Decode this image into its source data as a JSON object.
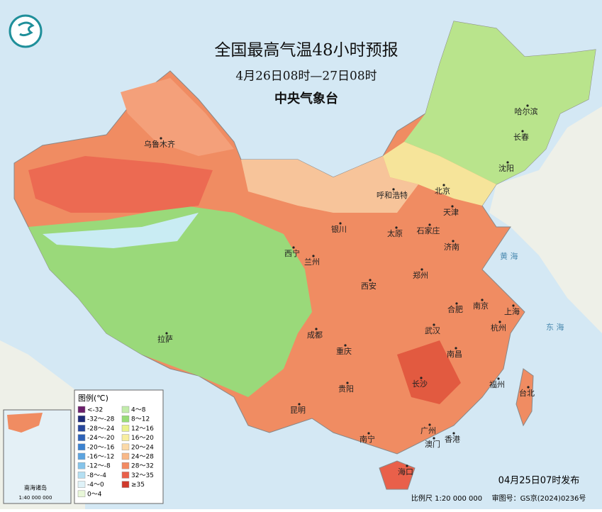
{
  "header": {
    "title": "全国最高气温48小时预报",
    "subtitle": "4月26日08时—27日08时",
    "issuer": "中央气象台"
  },
  "cities": [
    "乌鲁木齐",
    "哈尔滨",
    "长春",
    "沈阳",
    "呼和浩特",
    "北京",
    "天津",
    "银川",
    "太原",
    "石家庄",
    "济南",
    "西宁",
    "兰州",
    "西安",
    "郑州",
    "合肥",
    "南京",
    "上海",
    "杭州",
    "武汉",
    "成都",
    "重庆",
    "拉萨",
    "长沙",
    "南昌",
    "福州",
    "台北",
    "贵阳",
    "昆明",
    "南宁",
    "广州",
    "香港",
    "澳门",
    "海口"
  ],
  "seas": [
    "黄 海",
    "东 海"
  ],
  "legend": {
    "title": "图例(℃)",
    "entries": [
      {
        "label": "<-32",
        "color": "#6b1f6b"
      },
      {
        "label": "-32～-28",
        "color": "#1c2a78"
      },
      {
        "label": "-28～-24",
        "color": "#27479c"
      },
      {
        "label": "-24～-20",
        "color": "#2e62b8"
      },
      {
        "label": "-20～-16",
        "color": "#3b82d0"
      },
      {
        "label": "-16～-12",
        "color": "#5ba3df"
      },
      {
        "label": "-12～-8",
        "color": "#85c4ea"
      },
      {
        "label": "-8～-4",
        "color": "#b4dff2"
      },
      {
        "label": "-4～0",
        "color": "#dff2f8"
      },
      {
        "label": "0～4",
        "color": "#e8f7d8"
      },
      {
        "label": "4～8",
        "color": "#c2ecaa"
      },
      {
        "label": "8～12",
        "color": "#98dc78"
      },
      {
        "label": "12～16",
        "color": "#e9f28c"
      },
      {
        "label": "16～20",
        "color": "#f8eea0"
      },
      {
        "label": "20～24",
        "color": "#fbd9a8"
      },
      {
        "label": "24～28",
        "color": "#f8b888"
      },
      {
        "label": "28～32",
        "color": "#f28a62"
      },
      {
        "label": "32～35",
        "color": "#e9604a"
      },
      {
        "label": "≥35",
        "color": "#d03a2c"
      }
    ]
  },
  "inset": {
    "label": "南海诸岛",
    "scale": "1:40 000 000"
  },
  "footer": {
    "issued": "04月25日07时发布",
    "scale": "比例尺 1:20 000 000",
    "approval": "审图号：GS京(2024)0236号"
  }
}
